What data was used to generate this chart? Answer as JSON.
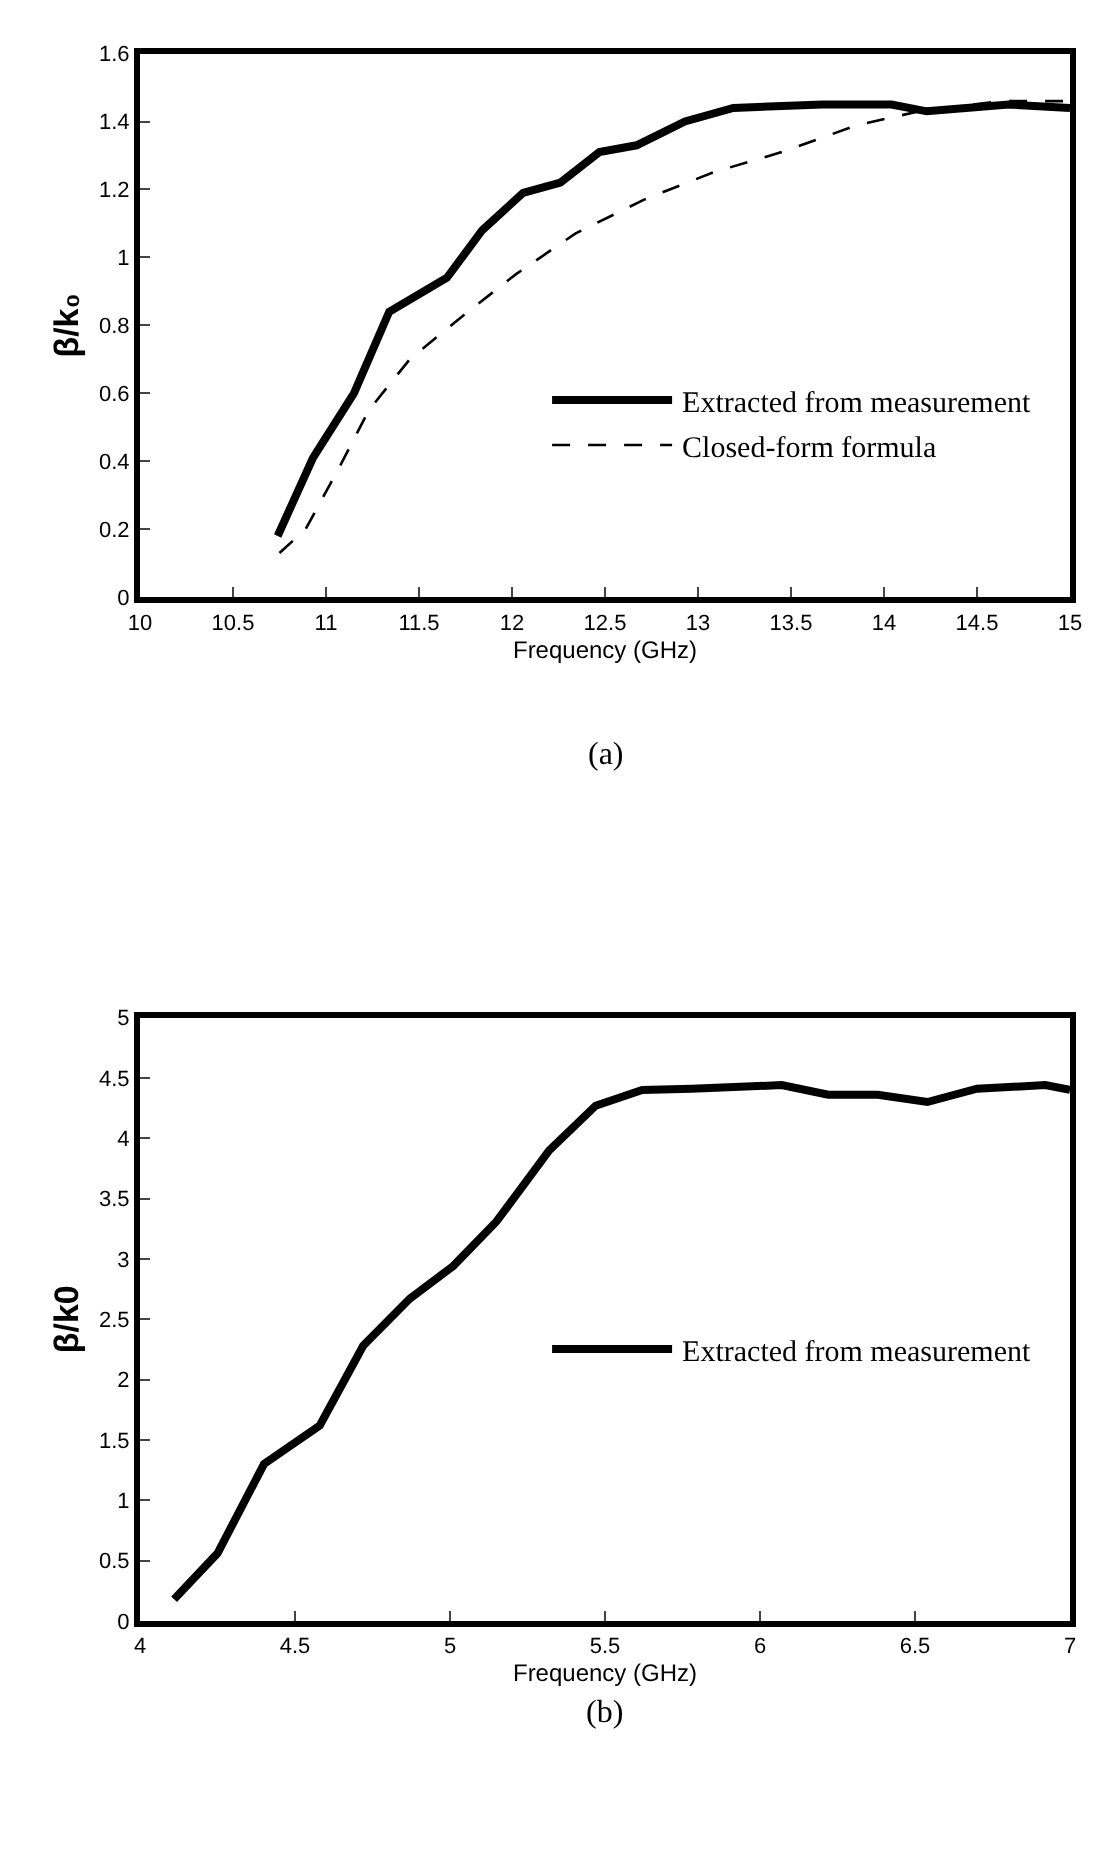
{
  "chart_data": [
    {
      "type": "line",
      "xlabel": "Frequency (GHz)",
      "ylabel": "β/k₀",
      "annotations": [
        "(a)"
      ],
      "xlim": [
        10,
        15
      ],
      "xticks": [
        10,
        10.5,
        11,
        11.5,
        12,
        12.5,
        13,
        13.5,
        14,
        14.5,
        15
      ],
      "ylim": [
        0,
        1.6
      ],
      "yticks": [
        0,
        0.2,
        0.4,
        0.6,
        0.8,
        1,
        1.2,
        1.4,
        1.6
      ],
      "legend": "bottom right",
      "marker": "none",
      "series": [
        {
          "name": "Extracted from measurement",
          "color": "#000000",
          "line_style": "solid",
          "x": [
            10.74,
            10.93,
            11.15,
            11.34,
            11.65,
            11.84,
            12.06,
            12.26,
            12.47,
            12.67,
            12.93,
            13.19,
            13.67,
            14.04,
            14.23,
            14.67,
            15
          ],
          "values": [
            0.18,
            0.41,
            0.6,
            0.84,
            0.94,
            1.08,
            1.19,
            1.22,
            1.31,
            1.33,
            1.4,
            1.44,
            1.45,
            1.45,
            1.43,
            1.45,
            1.44
          ]
        },
        {
          "name": "Closed-form formula",
          "color": "#000000",
          "line_style": "dashed",
          "x": [
            10.75,
            10.89,
            11.06,
            11.23,
            11.45,
            11.74,
            12.02,
            12.34,
            12.71,
            13.08,
            13.45,
            13.86,
            14.19,
            14.63,
            15
          ],
          "values": [
            0.13,
            0.2,
            0.37,
            0.55,
            0.7,
            0.83,
            0.95,
            1.07,
            1.17,
            1.25,
            1.31,
            1.39,
            1.43,
            1.46,
            1.46
          ]
        }
      ]
    },
    {
      "type": "line",
      "xlabel": "Frequency (GHz)",
      "ylabel": "β/k0",
      "annotations": [
        "(b)"
      ],
      "xlim": [
        4,
        7
      ],
      "xticks": [
        4,
        4.5,
        5,
        5.5,
        6,
        6.5,
        7
      ],
      "ylim": [
        0,
        5
      ],
      "yticks": [
        0,
        0.5,
        1,
        1.5,
        2,
        2.5,
        3,
        3.5,
        4,
        4.5,
        5
      ],
      "legend": "right",
      "marker": "none",
      "series": [
        {
          "name": "Extracted from measurement",
          "color": "#000000",
          "line_style": "solid",
          "x": [
            4.11,
            4.25,
            4.4,
            4.58,
            4.72,
            4.87,
            5.01,
            5.15,
            5.32,
            5.47,
            5.62,
            5.78,
            6.07,
            6.22,
            6.38,
            6.54,
            6.7,
            6.92,
            7
          ],
          "values": [
            0.18,
            0.56,
            1.3,
            1.62,
            2.28,
            2.67,
            2.94,
            3.31,
            3.9,
            4.27,
            4.4,
            4.41,
            4.44,
            4.36,
            4.36,
            4.3,
            4.41,
            4.44,
            4.4
          ]
        }
      ]
    }
  ]
}
